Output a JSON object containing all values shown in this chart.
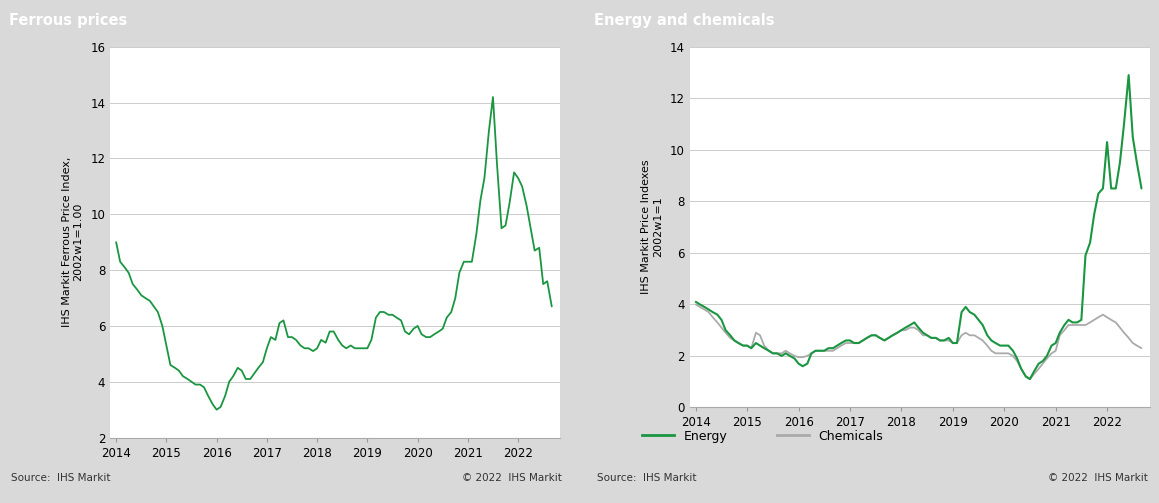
{
  "ferrous_title": "Ferrous prices",
  "ferrous_ylabel": "IHS Markit Ferrous Price Index,\n2002w1=1.00",
  "ferrous_ylim": [
    2.0,
    16.0
  ],
  "ferrous_yticks": [
    2.0,
    4.0,
    6.0,
    8.0,
    10.0,
    12.0,
    14.0,
    16.0
  ],
  "ferrous_color": "#1a9641",
  "energy_chem_title": "Energy and chemicals",
  "energy_chem_ylabel": "IHS Markit Price Indexes\n2002w1=1",
  "energy_chem_ylim": [
    0.0,
    14.0
  ],
  "energy_chem_yticks": [
    0.0,
    2.0,
    4.0,
    6.0,
    8.0,
    10.0,
    12.0,
    14.0
  ],
  "energy_color": "#1a9641",
  "chemicals_color": "#aaaaaa",
  "source_text": "Source:  IHS Markit",
  "copyright_text": "© 2022  IHS Markit",
  "header_bg": "#7f7f7f",
  "header_text_color": "#ffffff",
  "outer_bg": "#d9d9d9",
  "plot_bg": "#ffffff",
  "grid_color": "#cccccc",
  "ferrous_x": [
    2014.0,
    2014.08,
    2014.17,
    2014.25,
    2014.33,
    2014.42,
    2014.5,
    2014.58,
    2014.67,
    2014.75,
    2014.83,
    2014.92,
    2015.0,
    2015.08,
    2015.17,
    2015.25,
    2015.33,
    2015.42,
    2015.5,
    2015.58,
    2015.67,
    2015.75,
    2015.83,
    2015.92,
    2016.0,
    2016.08,
    2016.17,
    2016.25,
    2016.33,
    2016.42,
    2016.5,
    2016.58,
    2016.67,
    2016.75,
    2016.83,
    2016.92,
    2017.0,
    2017.08,
    2017.17,
    2017.25,
    2017.33,
    2017.42,
    2017.5,
    2017.58,
    2017.67,
    2017.75,
    2017.83,
    2017.92,
    2018.0,
    2018.08,
    2018.17,
    2018.25,
    2018.33,
    2018.42,
    2018.5,
    2018.58,
    2018.67,
    2018.75,
    2018.83,
    2018.92,
    2019.0,
    2019.08,
    2019.17,
    2019.25,
    2019.33,
    2019.42,
    2019.5,
    2019.58,
    2019.67,
    2019.75,
    2019.83,
    2019.92,
    2020.0,
    2020.08,
    2020.17,
    2020.25,
    2020.33,
    2020.42,
    2020.5,
    2020.58,
    2020.67,
    2020.75,
    2020.83,
    2020.92,
    2021.0,
    2021.08,
    2021.17,
    2021.25,
    2021.33,
    2021.42,
    2021.5,
    2021.58,
    2021.67,
    2021.75,
    2021.83,
    2021.92,
    2022.0,
    2022.08,
    2022.17,
    2022.25,
    2022.33,
    2022.42,
    2022.5,
    2022.58,
    2022.67
  ],
  "ferrous_y": [
    9.0,
    8.3,
    8.1,
    7.9,
    7.5,
    7.3,
    7.1,
    7.0,
    6.9,
    6.7,
    6.5,
    6.0,
    5.3,
    4.6,
    4.5,
    4.4,
    4.2,
    4.1,
    4.0,
    3.9,
    3.9,
    3.8,
    3.5,
    3.2,
    3.0,
    3.1,
    3.5,
    4.0,
    4.2,
    4.5,
    4.4,
    4.1,
    4.1,
    4.3,
    4.5,
    4.7,
    5.2,
    5.6,
    5.5,
    6.1,
    6.2,
    5.6,
    5.6,
    5.5,
    5.3,
    5.2,
    5.2,
    5.1,
    5.2,
    5.5,
    5.4,
    5.8,
    5.8,
    5.5,
    5.3,
    5.2,
    5.3,
    5.2,
    5.2,
    5.2,
    5.2,
    5.5,
    6.3,
    6.5,
    6.5,
    6.4,
    6.4,
    6.3,
    6.2,
    5.8,
    5.7,
    5.9,
    6.0,
    5.7,
    5.6,
    5.6,
    5.7,
    5.8,
    5.9,
    6.3,
    6.5,
    7.0,
    7.9,
    8.3,
    8.3,
    8.3,
    9.3,
    10.5,
    11.3,
    13.0,
    14.2,
    11.8,
    9.5,
    9.6,
    10.4,
    11.5,
    11.3,
    11.0,
    10.3,
    9.5,
    8.7,
    8.8,
    7.5,
    7.6,
    6.7
  ],
  "energy_x": [
    2014.0,
    2014.08,
    2014.17,
    2014.25,
    2014.33,
    2014.42,
    2014.5,
    2014.58,
    2014.67,
    2014.75,
    2014.83,
    2014.92,
    2015.0,
    2015.08,
    2015.17,
    2015.25,
    2015.33,
    2015.42,
    2015.5,
    2015.58,
    2015.67,
    2015.75,
    2015.83,
    2015.92,
    2016.0,
    2016.08,
    2016.17,
    2016.25,
    2016.33,
    2016.42,
    2016.5,
    2016.58,
    2016.67,
    2016.75,
    2016.83,
    2016.92,
    2017.0,
    2017.08,
    2017.17,
    2017.25,
    2017.33,
    2017.42,
    2017.5,
    2017.58,
    2017.67,
    2017.75,
    2017.83,
    2017.92,
    2018.0,
    2018.08,
    2018.17,
    2018.25,
    2018.33,
    2018.42,
    2018.5,
    2018.58,
    2018.67,
    2018.75,
    2018.83,
    2018.92,
    2019.0,
    2019.08,
    2019.17,
    2019.25,
    2019.33,
    2019.42,
    2019.5,
    2019.58,
    2019.67,
    2019.75,
    2019.83,
    2019.92,
    2020.0,
    2020.08,
    2020.17,
    2020.25,
    2020.33,
    2020.42,
    2020.5,
    2020.58,
    2020.67,
    2020.75,
    2020.83,
    2020.92,
    2021.0,
    2021.08,
    2021.17,
    2021.25,
    2021.33,
    2021.42,
    2021.5,
    2021.58,
    2021.67,
    2021.75,
    2021.83,
    2021.92,
    2022.0,
    2022.08,
    2022.17,
    2022.25,
    2022.33,
    2022.42,
    2022.5,
    2022.58,
    2022.67
  ],
  "energy_y": [
    4.1,
    4.0,
    3.9,
    3.8,
    3.7,
    3.6,
    3.4,
    3.0,
    2.8,
    2.6,
    2.5,
    2.4,
    2.4,
    2.3,
    2.5,
    2.4,
    2.3,
    2.2,
    2.1,
    2.1,
    2.0,
    2.1,
    2.0,
    1.9,
    1.7,
    1.6,
    1.7,
    2.1,
    2.2,
    2.2,
    2.2,
    2.3,
    2.3,
    2.4,
    2.5,
    2.6,
    2.6,
    2.5,
    2.5,
    2.6,
    2.7,
    2.8,
    2.8,
    2.7,
    2.6,
    2.7,
    2.8,
    2.9,
    3.0,
    3.1,
    3.2,
    3.3,
    3.1,
    2.9,
    2.8,
    2.7,
    2.7,
    2.6,
    2.6,
    2.7,
    2.5,
    2.5,
    3.7,
    3.9,
    3.7,
    3.6,
    3.4,
    3.2,
    2.8,
    2.6,
    2.5,
    2.4,
    2.4,
    2.4,
    2.2,
    1.9,
    1.5,
    1.2,
    1.1,
    1.4,
    1.7,
    1.8,
    2.0,
    2.4,
    2.5,
    2.9,
    3.2,
    3.4,
    3.3,
    3.3,
    3.4,
    5.9,
    6.4,
    7.5,
    8.3,
    8.5,
    10.3,
    8.5,
    8.5,
    9.5,
    11.0,
    12.9,
    10.5,
    9.5,
    8.5
  ],
  "chemicals_x": [
    2014.0,
    2014.08,
    2014.17,
    2014.25,
    2014.33,
    2014.42,
    2014.5,
    2014.58,
    2014.67,
    2014.75,
    2014.83,
    2014.92,
    2015.0,
    2015.08,
    2015.17,
    2015.25,
    2015.33,
    2015.42,
    2015.5,
    2015.58,
    2015.67,
    2015.75,
    2015.83,
    2015.92,
    2016.0,
    2016.08,
    2016.17,
    2016.25,
    2016.33,
    2016.42,
    2016.5,
    2016.58,
    2016.67,
    2016.75,
    2016.83,
    2016.92,
    2017.0,
    2017.08,
    2017.17,
    2017.25,
    2017.33,
    2017.42,
    2017.5,
    2017.58,
    2017.67,
    2017.75,
    2017.83,
    2017.92,
    2018.0,
    2018.08,
    2018.17,
    2018.25,
    2018.33,
    2018.42,
    2018.5,
    2018.58,
    2018.67,
    2018.75,
    2018.83,
    2018.92,
    2019.0,
    2019.08,
    2019.17,
    2019.25,
    2019.33,
    2019.42,
    2019.5,
    2019.58,
    2019.67,
    2019.75,
    2019.83,
    2019.92,
    2020.0,
    2020.08,
    2020.17,
    2020.25,
    2020.33,
    2020.42,
    2020.5,
    2020.58,
    2020.67,
    2020.75,
    2020.83,
    2020.92,
    2021.0,
    2021.08,
    2021.17,
    2021.25,
    2021.33,
    2021.42,
    2021.5,
    2021.58,
    2021.67,
    2021.75,
    2021.83,
    2021.92,
    2022.0,
    2022.08,
    2022.17,
    2022.25,
    2022.33,
    2022.42,
    2022.5,
    2022.58,
    2022.67
  ],
  "chemicals_y": [
    4.0,
    3.9,
    3.8,
    3.7,
    3.5,
    3.3,
    3.1,
    2.9,
    2.7,
    2.6,
    2.5,
    2.4,
    2.4,
    2.3,
    2.9,
    2.8,
    2.4,
    2.2,
    2.1,
    2.1,
    2.1,
    2.2,
    2.1,
    2.0,
    1.95,
    1.95,
    2.0,
    2.1,
    2.2,
    2.2,
    2.2,
    2.2,
    2.2,
    2.3,
    2.4,
    2.5,
    2.5,
    2.5,
    2.5,
    2.6,
    2.7,
    2.8,
    2.8,
    2.7,
    2.6,
    2.7,
    2.8,
    2.9,
    3.0,
    3.0,
    3.1,
    3.1,
    3.0,
    2.8,
    2.8,
    2.7,
    2.7,
    2.6,
    2.6,
    2.6,
    2.5,
    2.5,
    2.8,
    2.9,
    2.8,
    2.8,
    2.7,
    2.6,
    2.4,
    2.2,
    2.1,
    2.1,
    2.1,
    2.1,
    2.0,
    1.8,
    1.5,
    1.2,
    1.1,
    1.3,
    1.5,
    1.7,
    1.9,
    2.1,
    2.2,
    2.8,
    3.0,
    3.2,
    3.2,
    3.2,
    3.2,
    3.2,
    3.3,
    3.4,
    3.5,
    3.6,
    3.5,
    3.4,
    3.3,
    3.1,
    2.9,
    2.7,
    2.5,
    2.4,
    2.3
  ]
}
